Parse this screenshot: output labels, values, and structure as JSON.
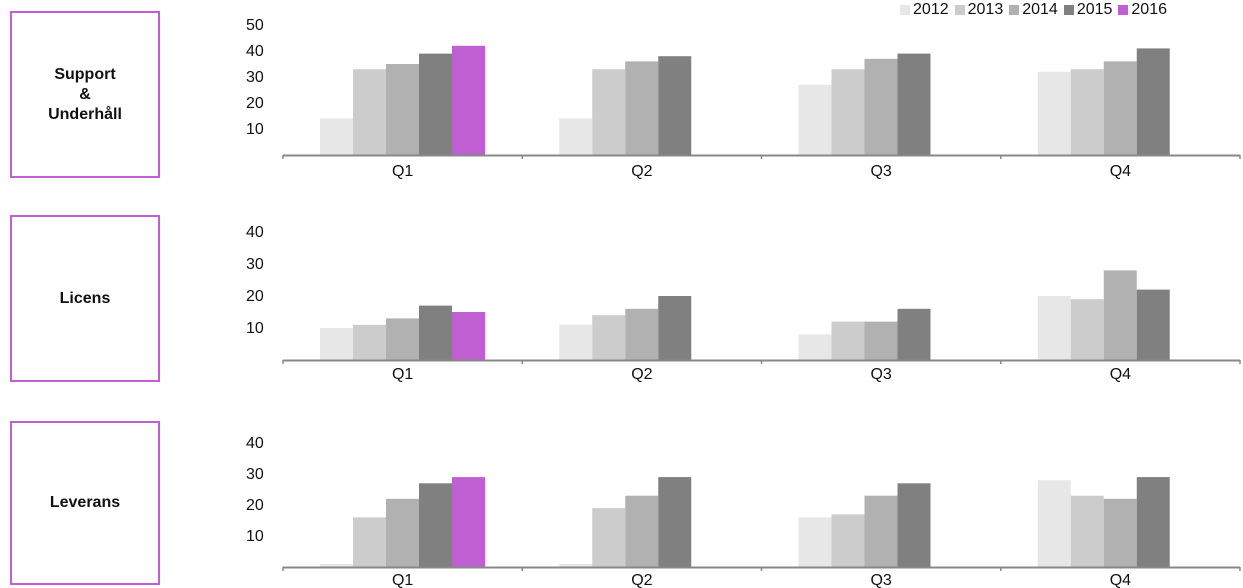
{
  "labels": [
    "Support\n&\nUnderhåll",
    "Licens",
    "Leverans"
  ],
  "colors": {
    "2012": "#e7e7e7",
    "2013": "#cccccc",
    "2014": "#b1b1b1",
    "2015": "#808080",
    "2016": "#bf5fd1",
    "box_border": "#bf5fd1",
    "axis": "#888888"
  },
  "chart_data": [
    {
      "type": "bar",
      "title": "Support & Underhåll",
      "categories": [
        "Q1",
        "Q2",
        "Q3",
        "Q4"
      ],
      "yticks": [
        10,
        20,
        30,
        40,
        50
      ],
      "ylim": [
        0,
        50
      ],
      "xlabel": "",
      "ylabel": "",
      "legend": "top-right",
      "series": [
        {
          "name": "2012",
          "values": [
            14,
            14,
            27,
            32
          ]
        },
        {
          "name": "2013",
          "values": [
            33,
            33,
            33,
            33
          ]
        },
        {
          "name": "2014",
          "values": [
            35,
            36,
            37,
            36
          ]
        },
        {
          "name": "2015",
          "values": [
            39,
            38,
            39,
            41
          ]
        },
        {
          "name": "2016",
          "values": [
            42,
            null,
            null,
            null
          ]
        }
      ]
    },
    {
      "type": "bar",
      "title": "Licens",
      "categories": [
        "Q1",
        "Q2",
        "Q3",
        "Q4"
      ],
      "yticks": [
        10,
        20,
        30,
        40
      ],
      "ylim": [
        0,
        40
      ],
      "xlabel": "",
      "ylabel": "",
      "series": [
        {
          "name": "2012",
          "values": [
            10,
            11,
            8,
            20
          ]
        },
        {
          "name": "2013",
          "values": [
            11,
            14,
            12,
            19
          ]
        },
        {
          "name": "2014",
          "values": [
            13,
            16,
            12,
            28
          ]
        },
        {
          "name": "2015",
          "values": [
            17,
            20,
            16,
            22
          ]
        },
        {
          "name": "2016",
          "values": [
            15,
            null,
            null,
            null
          ]
        }
      ]
    },
    {
      "type": "bar",
      "title": "Leverans",
      "categories": [
        "Q1",
        "Q2",
        "Q3",
        "Q4"
      ],
      "yticks": [
        10,
        20,
        30,
        40
      ],
      "ylim": [
        0,
        40
      ],
      "xlabel": "",
      "ylabel": "",
      "series": [
        {
          "name": "2012",
          "values": [
            1,
            1,
            16,
            28
          ]
        },
        {
          "name": "2013",
          "values": [
            16,
            19,
            17,
            23
          ]
        },
        {
          "name": "2014",
          "values": [
            22,
            23,
            23,
            22
          ]
        },
        {
          "name": "2015",
          "values": [
            27,
            29,
            27,
            29
          ]
        },
        {
          "name": "2016",
          "values": [
            29,
            null,
            null,
            null
          ]
        }
      ]
    }
  ]
}
